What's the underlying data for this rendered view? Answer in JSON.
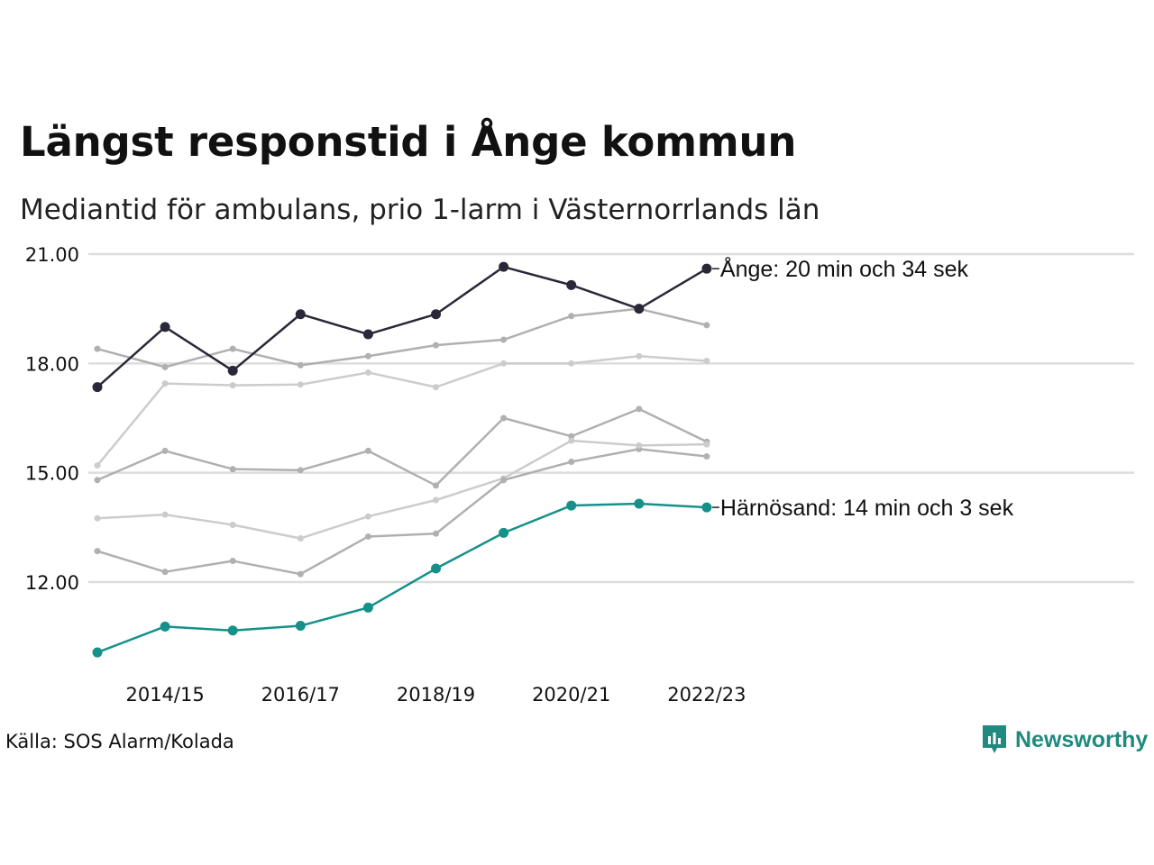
{
  "title": "Längst responstid i Ånge kommun",
  "subtitle": "Mediantid för ambulans, prio 1-larm i Västernorrlands län",
  "source": "Källa: SOS Alarm/Kolada",
  "brand": {
    "name": "Newsworthy",
    "icon": "newsworthy-logo-icon",
    "color": "#1f8a7d"
  },
  "chart_data": {
    "type": "line",
    "x": [
      "2013/14",
      "2014/15",
      "2015/16",
      "2016/17",
      "2017/18",
      "2018/19",
      "2019/20",
      "2020/21",
      "2021/22",
      "2022/23"
    ],
    "x_tick_labels": [
      "2014/15",
      "2016/17",
      "2018/19",
      "2020/21",
      "2022/23"
    ],
    "y_ticks": [
      "12.00",
      "15.00",
      "18.00",
      "21.00"
    ],
    "ylim": [
      10.0,
      21.0
    ],
    "grid": "horizontal",
    "series": [
      {
        "values": [
          18.4,
          17.9,
          18.4,
          17.95,
          18.2,
          18.5,
          18.65,
          19.3,
          19.5,
          19.05
        ],
        "color": "#b0b0b0",
        "highlight": false
      },
      {
        "values": [
          15.2,
          17.45,
          17.4,
          17.42,
          17.75,
          17.35,
          18.0,
          18.0,
          18.2,
          18.07
        ],
        "color": "#cccccc",
        "highlight": false
      },
      {
        "values": [
          14.8,
          15.6,
          15.1,
          15.07,
          15.6,
          14.65,
          16.5,
          16.0,
          16.75,
          15.85
        ],
        "color": "#b0b0b0",
        "highlight": false
      },
      {
        "values": [
          null,
          null,
          null,
          null,
          null,
          null,
          14.8,
          15.3,
          15.65,
          15.45
        ],
        "color": "#b0b0b0",
        "highlight": false
      },
      {
        "values": [
          13.75,
          13.85,
          13.57,
          13.2,
          13.8,
          14.25,
          14.85,
          15.88,
          15.75,
          15.78
        ],
        "color": "#cccccc",
        "highlight": false
      },
      {
        "values": [
          12.85,
          12.28,
          12.58,
          12.22,
          13.25,
          13.33,
          14.8,
          null,
          null,
          null
        ],
        "color": "#b0b0b0",
        "highlight": false
      },
      {
        "name": "Härnösand",
        "label": "Härnösand: 14 min och 3 sek",
        "values": [
          10.07,
          10.78,
          10.67,
          10.8,
          11.3,
          12.37,
          13.35,
          14.1,
          14.15,
          14.05
        ],
        "color": "#15918a",
        "highlight": true
      },
      {
        "name": "Ånge",
        "label": "Ånge: 20 min och 34 sek",
        "values": [
          17.35,
          19.0,
          17.8,
          19.35,
          18.8,
          19.35,
          20.65,
          20.15,
          19.5,
          20.6
        ],
        "color": "#2a2838",
        "highlight": true
      }
    ]
  }
}
